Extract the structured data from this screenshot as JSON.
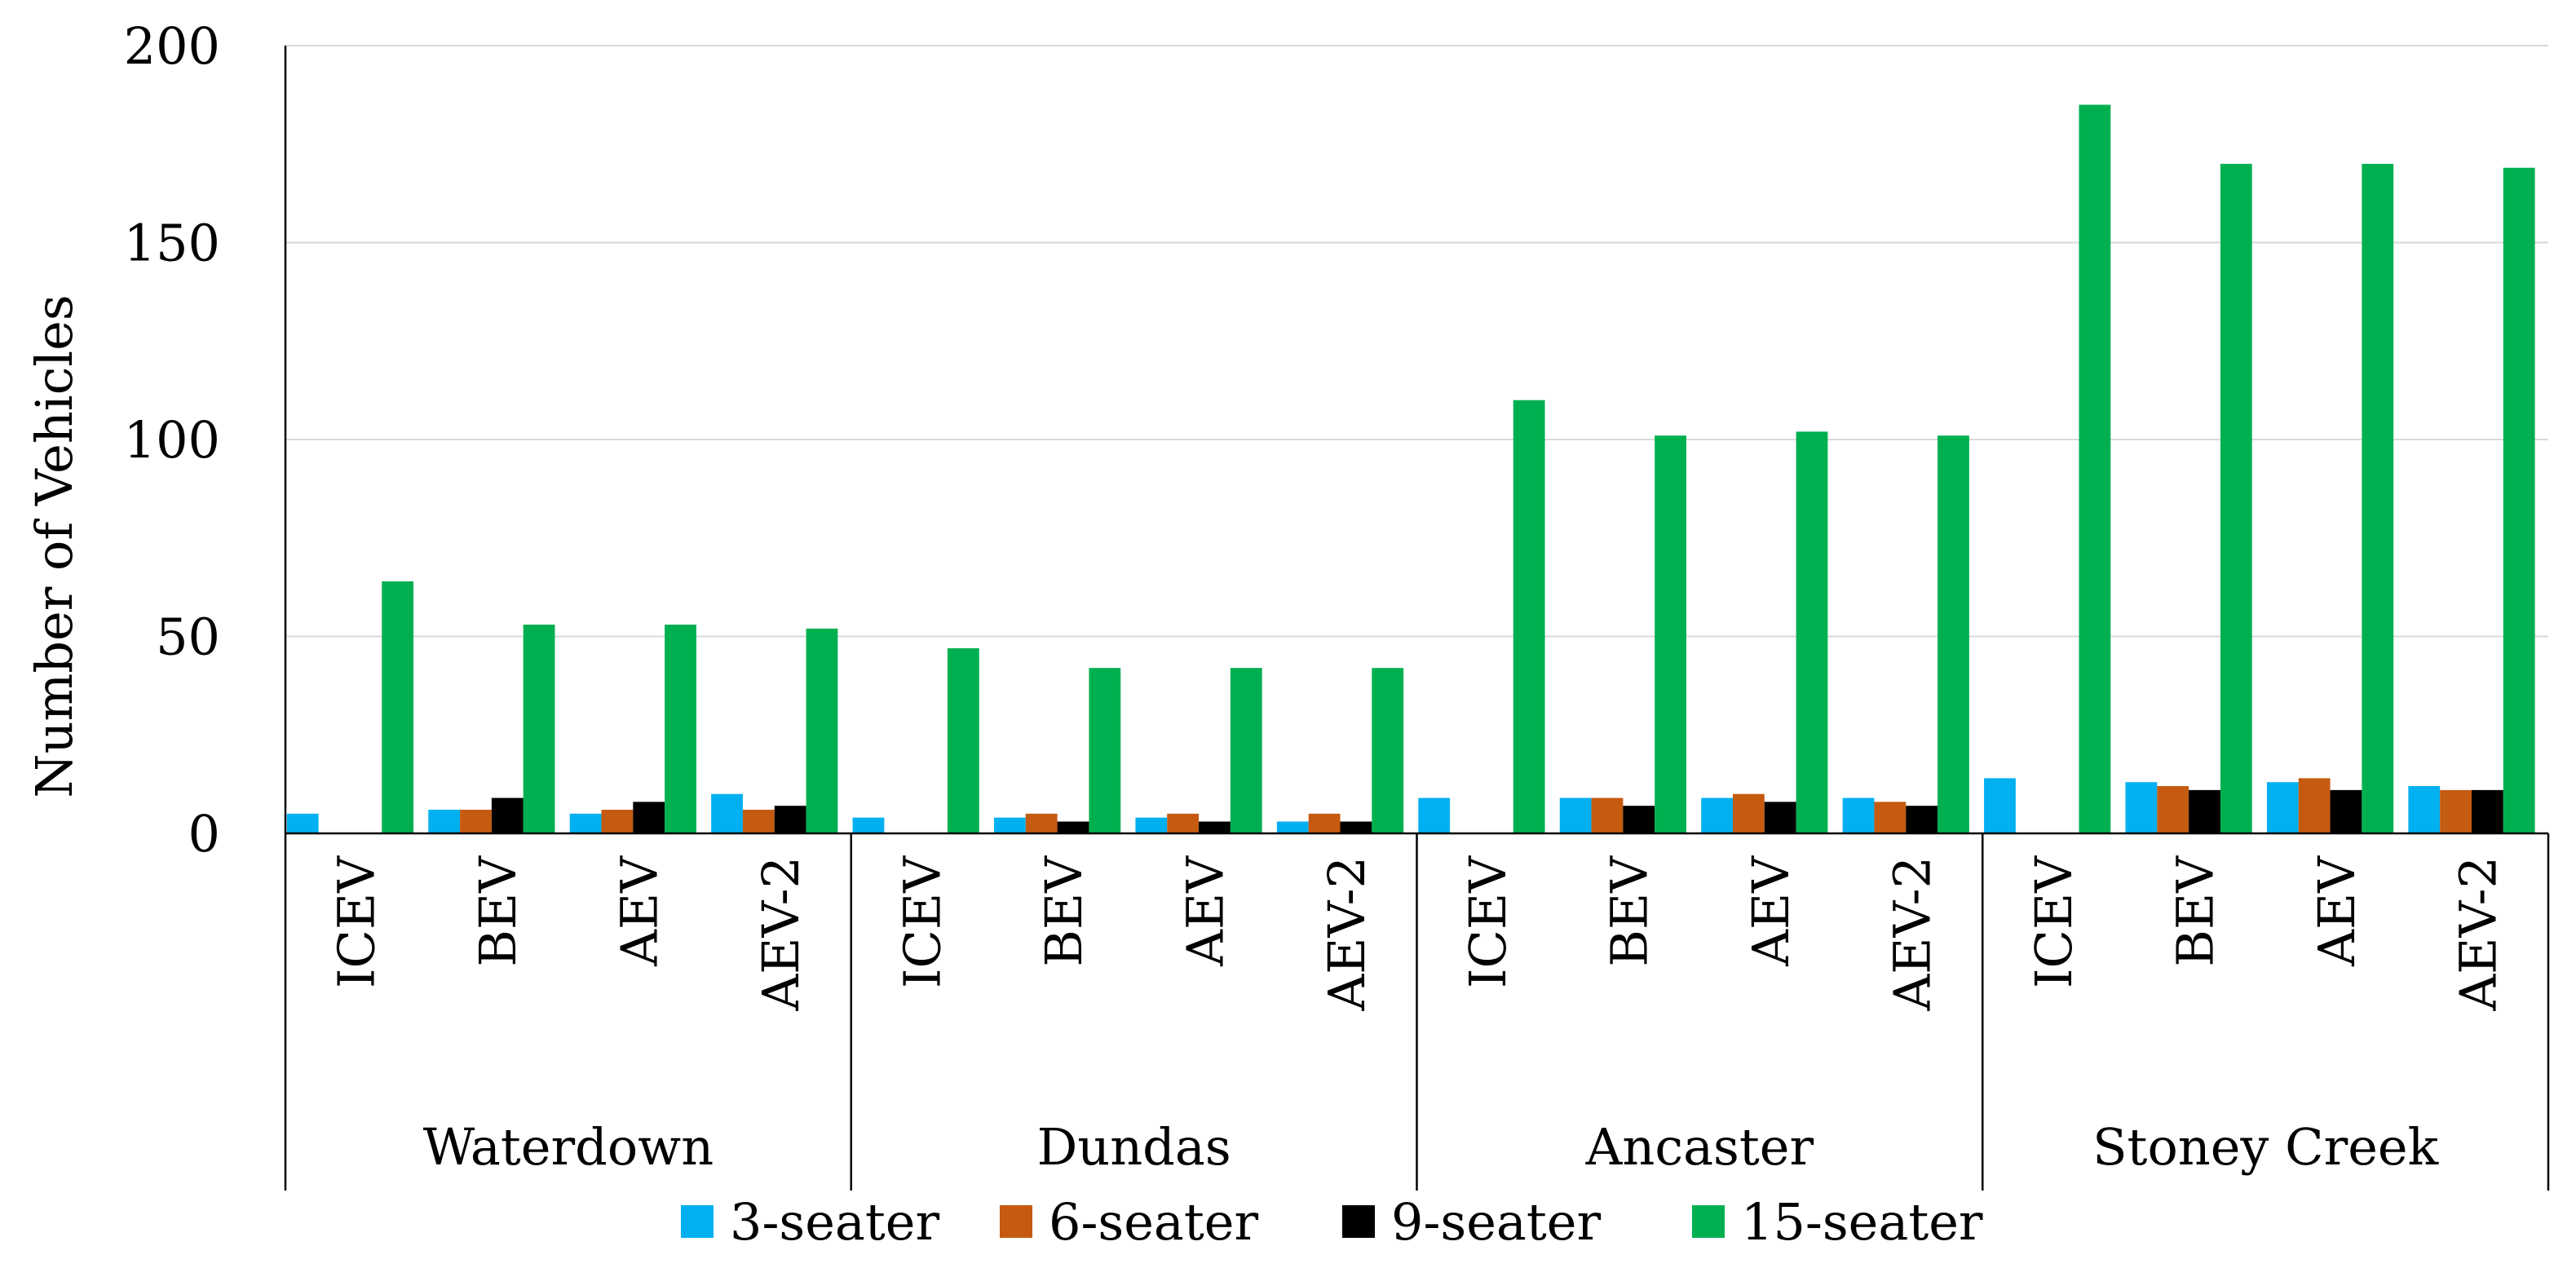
{
  "chart_data": {
    "type": "bar",
    "title": "",
    "xlabel": "",
    "ylabel": "Number of Vehicles",
    "ylim": [
      0,
      200
    ],
    "yticks": [
      0,
      50,
      100,
      150,
      200
    ],
    "grid": true,
    "legend_position": "bottom",
    "groups": [
      {
        "name": "Waterdown",
        "categories": [
          "ICEV",
          "BEV",
          "AEV",
          "AEV-2"
        ]
      },
      {
        "name": "Dundas",
        "categories": [
          "ICEV",
          "BEV",
          "AEV",
          "AEV-2"
        ]
      },
      {
        "name": "Ancaster",
        "categories": [
          "ICEV",
          "BEV",
          "AEV",
          "AEV-2"
        ]
      },
      {
        "name": "Stoney Creek",
        "categories": [
          "ICEV",
          "BEV",
          "AEV",
          "AEV-2"
        ]
      }
    ],
    "series": [
      {
        "name": "3-seater",
        "color": "#00B0F0",
        "values": [
          5,
          6,
          5,
          10,
          4,
          4,
          4,
          3,
          9,
          9,
          9,
          9,
          14,
          13,
          13,
          12
        ]
      },
      {
        "name": "6-seater",
        "color": "#C55A11",
        "values": [
          0,
          6,
          6,
          6,
          0,
          5,
          5,
          5,
          0,
          9,
          10,
          8,
          0,
          12,
          14,
          11
        ]
      },
      {
        "name": "9-seater",
        "color": "#000000",
        "values": [
          0,
          9,
          8,
          7,
          0,
          3,
          3,
          3,
          0,
          7,
          8,
          7,
          0,
          11,
          11,
          11
        ]
      },
      {
        "name": "15-seater",
        "color": "#00B050",
        "values": [
          64,
          53,
          53,
          52,
          47,
          42,
          42,
          42,
          110,
          101,
          102,
          101,
          185,
          170,
          170,
          169
        ]
      }
    ]
  }
}
